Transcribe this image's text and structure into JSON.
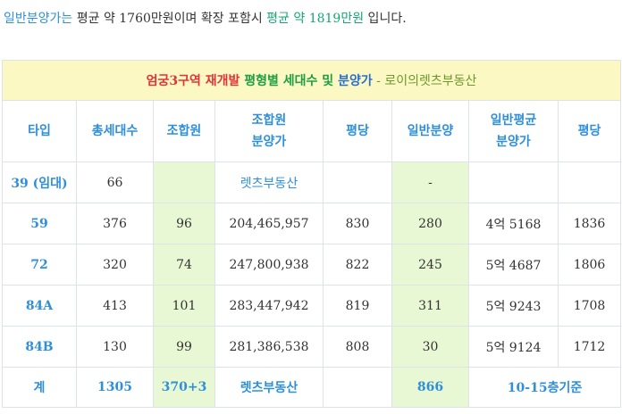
{
  "intro": {
    "part1": "일반분양가는",
    "part2": " 평균 약 1760만원이며 확장 포함시 ",
    "part3": "평균 약 1819만원",
    "part4": " 입니다."
  },
  "table": {
    "title": {
      "red": "엄궁3구역 재개발",
      "green": " 평형별 세대수 및",
      "blue": " 분양가",
      "rest": " - 로이의렛츠부동산"
    },
    "headers": {
      "type": "타입",
      "total": "총세대수",
      "member": "조합원",
      "member_price_1": "조합원",
      "member_price_2": "분양가",
      "pyeong1": "평당",
      "general": "일반분양",
      "general_avg_1": "일반평균",
      "general_avg_2": "분양가",
      "pyeong2": "평당"
    },
    "rows": [
      {
        "type": "39 (임대)",
        "total": "66",
        "member": "",
        "member_price": "렛츠부동산",
        "pyeong1": "",
        "general": "-",
        "general_price": "",
        "pyeong2": ""
      },
      {
        "type": "59",
        "total": "376",
        "member": "96",
        "member_price": "204,465,957",
        "pyeong1": "830",
        "general": "280",
        "general_price": "4억 5168",
        "pyeong2": "1836"
      },
      {
        "type": "72",
        "total": "320",
        "member": "74",
        "member_price": "247,800,938",
        "pyeong1": "822",
        "general": "245",
        "general_price": "5억 4687",
        "pyeong2": "1806"
      },
      {
        "type": "84A",
        "total": "413",
        "member": "101",
        "member_price": "283,447,942",
        "pyeong1": "819",
        "general": "311",
        "general_price": "5억 9243",
        "pyeong2": "1708"
      },
      {
        "type": "84B",
        "total": "130",
        "member": "99",
        "member_price": "281,386,538",
        "pyeong1": "808",
        "general": "30",
        "general_price": "5억 9124",
        "pyeong2": "1712"
      }
    ],
    "footer": {
      "label": "계",
      "total": "1305",
      "member": "370+3",
      "member_price": "렛츠부동산",
      "pyeong1": "",
      "general": "866",
      "note": "10-15층기준"
    }
  },
  "colors": {
    "accent_blue": "#2f8fd8",
    "accent_green": "#17a673",
    "title_bg": "#fcf8c4",
    "member_col_bg": "#e8f8d4"
  }
}
